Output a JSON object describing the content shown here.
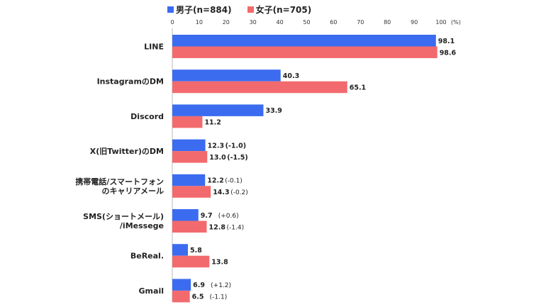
{
  "chart_data": {
    "type": "bar",
    "orientation": "horizontal",
    "unit_label": "(%)",
    "xlim": [
      0,
      100
    ],
    "xticks": [
      "0",
      "10",
      "20",
      "30",
      "40",
      "50",
      "60",
      "70",
      "80",
      "90",
      "100"
    ],
    "categories": [
      [
        "LINE"
      ],
      [
        "InstagramのDM"
      ],
      [
        "Discord"
      ],
      [
        "X(旧Twitter)のDM"
      ],
      [
        "携帯電話/スマートフォン",
        "のキャリアメール"
      ],
      [
        "SMS(ショートメール)",
        "/iMessege"
      ],
      [
        "BeReal."
      ],
      [
        "Gmail"
      ]
    ],
    "series": [
      {
        "name": "男子(n=884)",
        "color": "#3b6cf0",
        "values": [
          98.1,
          40.3,
          33.9,
          12.3,
          12.2,
          9.7,
          5.8,
          6.9
        ],
        "diffs": [
          "",
          "",
          "",
          "(-1.0)",
          "(-0.1)",
          "(+0.6)",
          "",
          "(+1.2)"
        ]
      },
      {
        "name": "女子(n=705)",
        "color": "#f26a6e",
        "values": [
          98.6,
          65.1,
          11.2,
          13.0,
          14.3,
          12.8,
          13.8,
          6.5
        ],
        "diffs": [
          "",
          "",
          "",
          "(-1.5)",
          "(-0.2)",
          "(-1.4)",
          "",
          "(-1.1)"
        ]
      }
    ]
  }
}
